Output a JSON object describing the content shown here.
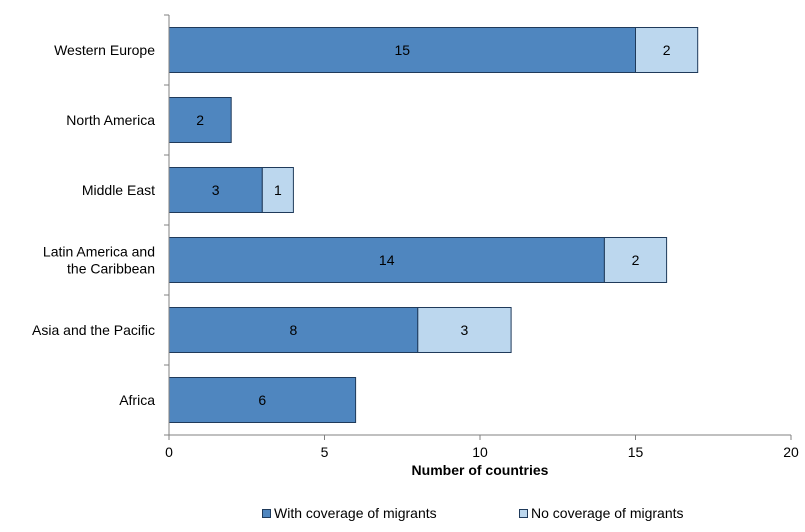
{
  "colors": {
    "with_coverage": "#4f86bf",
    "no_coverage": "#bcd7ee",
    "bar_outline": "#1f3a5a",
    "axis": "#808080",
    "grid": "#d9d9d9"
  },
  "chart_data": {
    "type": "bar",
    "orientation": "horizontal",
    "stacked": true,
    "categories": [
      "Western Europe",
      "North America",
      "Middle East",
      "Latin America and the Caribbean",
      "Asia and the Pacific",
      "Africa"
    ],
    "category_lines": [
      [
        "Western Europe"
      ],
      [
        "North America"
      ],
      [
        "Middle East"
      ],
      [
        "Latin America and",
        "the Caribbean"
      ],
      [
        "Asia and the Pacific"
      ],
      [
        "Africa"
      ]
    ],
    "series": [
      {
        "name": "With coverage of migrants",
        "values": [
          15,
          2,
          3,
          14,
          8,
          6
        ],
        "color": "#4f86bf"
      },
      {
        "name": "No coverage of migrants",
        "values": [
          2,
          0,
          1,
          2,
          3,
          0
        ],
        "color": "#bcd7ee"
      }
    ],
    "xlabel": "Number of countries",
    "ylabel": "",
    "xlim": [
      0,
      20
    ],
    "xticks": [
      0,
      5,
      10,
      15,
      20
    ],
    "grid": false,
    "legend_position": "bottom",
    "data_labels": true
  }
}
